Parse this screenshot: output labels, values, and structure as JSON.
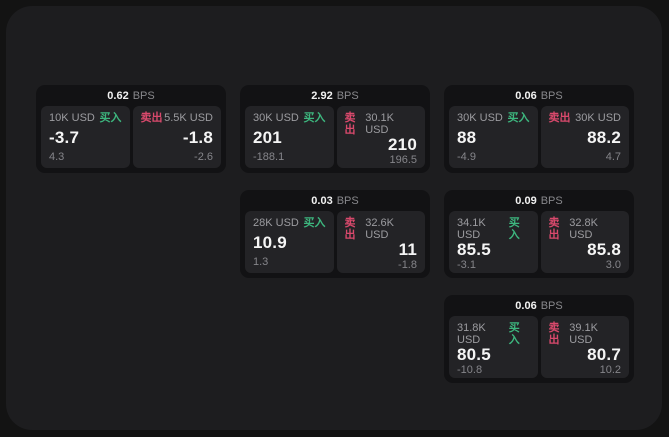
{
  "labels": {
    "bps": "BPS",
    "buy": "买入",
    "sell": "卖出"
  },
  "colors": {
    "background": "#131313",
    "panel": "#1d1d1f",
    "card": "#121214",
    "tile": "#232326",
    "buy_green": "#3db67e",
    "sell_red": "#d9496c",
    "text_primary": "#f5f5f5",
    "text_secondary": "#9c9ca0"
  },
  "cards": [
    {
      "bps": "0.62",
      "buy": {
        "amount": "10K USD",
        "price": "-3.7",
        "delta": "4.3"
      },
      "sell": {
        "amount": "5.5K USD",
        "price": "-1.8",
        "delta": "-2.6"
      }
    },
    {
      "bps": "2.92",
      "buy": {
        "amount": "30K USD",
        "price": "201",
        "delta": "-188.1"
      },
      "sell": {
        "amount": "30.1K USD",
        "price": "210",
        "delta": "196.5"
      }
    },
    {
      "bps": "0.06",
      "buy": {
        "amount": "30K USD",
        "price": "88",
        "delta": "-4.9"
      },
      "sell": {
        "amount": "30K USD",
        "price": "88.2",
        "delta": "4.7"
      }
    },
    {
      "bps": "0.03",
      "buy": {
        "amount": "28K USD",
        "price": "10.9",
        "delta": "1.3"
      },
      "sell": {
        "amount": "32.6K USD",
        "price": "11",
        "delta": "-1.8"
      }
    },
    {
      "bps": "0.09",
      "buy": {
        "amount": "34.1K USD",
        "price": "85.5",
        "delta": "-3.1"
      },
      "sell": {
        "amount": "32.8K USD",
        "price": "85.8",
        "delta": "3.0"
      }
    },
    {
      "bps": "0.06",
      "buy": {
        "amount": "31.8K USD",
        "price": "80.5",
        "delta": "-10.8"
      },
      "sell": {
        "amount": "39.1K USD",
        "price": "80.7",
        "delta": "10.2"
      }
    }
  ]
}
